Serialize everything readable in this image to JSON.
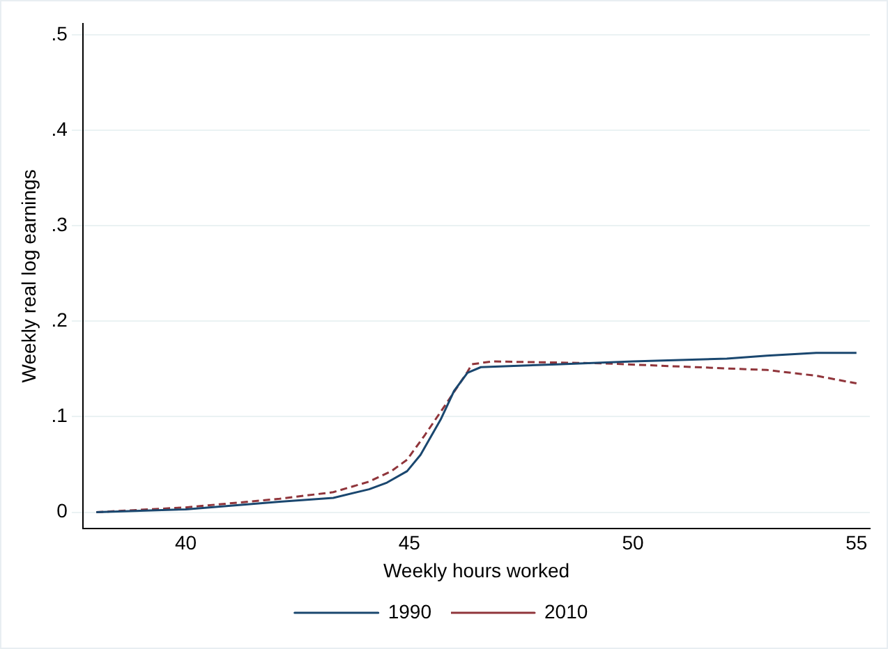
{
  "chart_data": {
    "type": "line",
    "xlabel": "Weekly hours worked",
    "ylabel": "Weekly real log earnings",
    "xlim": [
      37.7,
      55.3
    ],
    "xticks": [
      40,
      45,
      50,
      55
    ],
    "ylim": [
      -0.017,
      0.512
    ],
    "yticks": [
      {
        "value": 0,
        "label": "0"
      },
      {
        "value": 0.1,
        "label": ".1"
      },
      {
        "value": 0.2,
        "label": ".2"
      },
      {
        "value": 0.3,
        "label": ".3"
      },
      {
        "value": 0.4,
        "label": ".4"
      },
      {
        "value": 0.5,
        "label": ".5"
      }
    ],
    "grid": "y",
    "legend": "bottom",
    "marker": "none",
    "series": [
      {
        "name": "1990",
        "color": "#1a476f",
        "line_style": "solid",
        "x": [
          38,
          40,
          42.1,
          43.3,
          44.1,
          44.5,
          44.95,
          45.25,
          45.7,
          46,
          46.3,
          46.6,
          48.3,
          50,
          52.1,
          53,
          54.1,
          55
        ],
        "values": [
          0,
          0.003,
          0.011,
          0.015,
          0.024,
          0.031,
          0.043,
          0.06,
          0.097,
          0.127,
          0.146,
          0.152,
          0.155,
          0.158,
          0.161,
          0.164,
          0.167,
          0.167
        ]
      },
      {
        "name": "2010",
        "color": "#90353b",
        "line_style": "dashed",
        "x": [
          38,
          40,
          42.1,
          43.3,
          44.1,
          44.6,
          44.95,
          45.35,
          45.8,
          46.3,
          46.4,
          46.85,
          49.35,
          51.4,
          53,
          54.1,
          55
        ],
        "values": [
          0,
          0.005,
          0.014,
          0.021,
          0.032,
          0.043,
          0.055,
          0.081,
          0.112,
          0.147,
          0.155,
          0.158,
          0.156,
          0.152,
          0.149,
          0.143,
          0.135
        ]
      }
    ]
  }
}
